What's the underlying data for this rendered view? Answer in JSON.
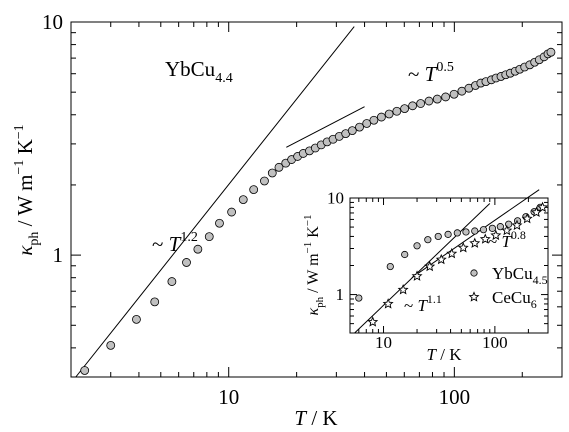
{
  "chart_data": [
    {
      "type": "scatter",
      "xscale": "log",
      "yscale": "log",
      "xlim": [
        2,
        300
      ],
      "ylim": [
        0.3,
        10
      ],
      "xticklabels": [
        "10",
        "100"
      ],
      "yticklabels": [
        "1",
        "10"
      ],
      "xlabel": {
        "sym": "T",
        "unit": " / K"
      },
      "ylabel": {
        "sym": "κ",
        "sub": "ph",
        "unit": " / W m",
        "exp1": "−1",
        "unit2": " K",
        "exp2": "−1"
      },
      "annotations": {
        "compound": {
          "base": "YbCu",
          "sub": "4.4"
        },
        "fit_low": {
          "prefix": "~ ",
          "sym": "T",
          "exp": "1.2"
        },
        "fit_high": {
          "prefix": "~ ",
          "sym": "T",
          "exp": "0.5"
        }
      },
      "fit_lines": [
        {
          "exponent": 1.2,
          "x": [
            2.1,
            36
          ],
          "y": [
            0.3,
            9.56
          ]
        },
        {
          "exponent": 0.5,
          "x": [
            18,
            40
          ],
          "y": [
            2.9,
            4.33
          ]
        }
      ],
      "series": [
        {
          "marker": "circle",
          "color": "#c0c0c0",
          "x": [
            2.3,
            3.0,
            3.9,
            4.7,
            5.6,
            6.5,
            7.3,
            8.2,
            9.1,
            10.3,
            11.6,
            12.9,
            14.4,
            15.6,
            16.7,
            17.9,
            19.0,
            20.2,
            21.4,
            22.8,
            24.2,
            25.7,
            27.3,
            29.0,
            30.9,
            33.0,
            35.3,
            38.0,
            40.9,
            44.0,
            47.5,
            51.4,
            55.6,
            60.2,
            65.3,
            70.9,
            77.2,
            84.0,
            91.5,
            99.7,
            108,
            116,
            124,
            131,
            138,
            146,
            153,
            161,
            169,
            177,
            186,
            195,
            205,
            216,
            227,
            238,
            250,
            260,
            268
          ],
          "y": [
            0.32,
            0.41,
            0.53,
            0.63,
            0.77,
            0.93,
            1.06,
            1.2,
            1.37,
            1.53,
            1.73,
            1.91,
            2.08,
            2.25,
            2.38,
            2.48,
            2.57,
            2.65,
            2.73,
            2.8,
            2.88,
            2.97,
            3.06,
            3.14,
            3.23,
            3.32,
            3.42,
            3.54,
            3.67,
            3.79,
            3.91,
            4.03,
            4.14,
            4.25,
            4.37,
            4.47,
            4.58,
            4.67,
            4.77,
            4.9,
            5.05,
            5.2,
            5.34,
            5.47,
            5.55,
            5.65,
            5.75,
            5.84,
            5.94,
            6.03,
            6.15,
            6.27,
            6.41,
            6.55,
            6.72,
            6.89,
            7.09,
            7.3,
            7.42
          ]
        }
      ]
    },
    {
      "type": "scatter",
      "xscale": "log",
      "yscale": "log",
      "xlim": [
        5,
        300
      ],
      "ylim": [
        0.4,
        10
      ],
      "xticklabels": [
        "10",
        "100"
      ],
      "yticklabels": [
        "1",
        "10"
      ],
      "xlabel": {
        "sym": "T",
        "unit": " / K"
      },
      "ylabel": {
        "sym": "κ",
        "sub": "ph",
        "unit": " / W m",
        "exp1": "−1",
        "unit2": " K",
        "exp2": "−1"
      },
      "annotations": {
        "fit_low": {
          "prefix": "~ ",
          "sym": "T",
          "exp": "1.1"
        },
        "fit_high": {
          "prefix": "~ ",
          "sym": "T",
          "exp": "0.8"
        }
      },
      "legend": {
        "position": "bottom-right"
      },
      "fit_lines": [
        {
          "exponent": 1.1,
          "x": [
            5.5,
            90
          ],
          "y": [
            0.4,
            8.77
          ]
        },
        {
          "exponent": 0.8,
          "x": [
            18,
            250
          ],
          "y": [
            1.5,
            12.2
          ]
        }
      ],
      "series": [
        {
          "name": {
            "base": "YbCu",
            "sub": "4.5"
          },
          "marker": "circle",
          "color": "#c0c0c0",
          "x": [
            6.0,
            11.5,
            15.5,
            20,
            25,
            31,
            38,
            46,
            55,
            66,
            79,
            95,
            112,
            133,
            160,
            190,
            225,
            255
          ],
          "y": [
            0.92,
            1.95,
            2.6,
            3.2,
            3.7,
            4.0,
            4.2,
            4.35,
            4.45,
            4.55,
            4.7,
            4.85,
            5.05,
            5.35,
            5.8,
            6.4,
            7.2,
            8.0
          ]
        },
        {
          "name": {
            "base": "CeCu",
            "sub": "6"
          },
          "marker": "star",
          "color": "#ffffff",
          "x": [
            8,
            11,
            15,
            20,
            26,
            33,
            41,
            52,
            66,
            82,
            102,
            128,
            158,
            195,
            236,
            268
          ],
          "y": [
            0.52,
            0.8,
            1.12,
            1.55,
            1.95,
            2.3,
            2.65,
            3.05,
            3.4,
            3.75,
            4.1,
            4.6,
            5.2,
            6.1,
            7.1,
            8.0
          ]
        }
      ]
    }
  ]
}
